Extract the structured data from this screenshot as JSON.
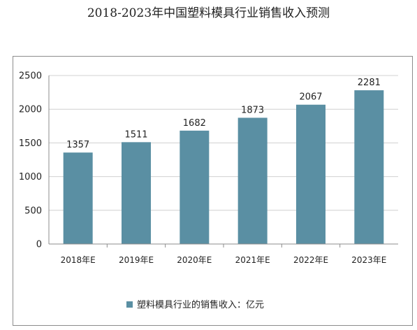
{
  "chart_data": {
    "type": "bar",
    "title": "2018-2023年中国塑料模具行业销售收入预测",
    "categories": [
      "2018年E",
      "2019年E",
      "2020年E",
      "2021年E",
      "2022年E",
      "2023年E"
    ],
    "series": [
      {
        "name": "塑料模具行业的销售收入：亿元",
        "values": [
          1357,
          1511,
          1682,
          1873,
          2067,
          2281
        ],
        "color": "#5a8fa3"
      }
    ],
    "value_labels": [
      "1357",
      "1511",
      "1682",
      "1873",
      "2067",
      "2281"
    ],
    "ylim": [
      0,
      2500
    ],
    "yticks": [
      0,
      500,
      1000,
      1500,
      2000,
      2500
    ],
    "ytick_labels": [
      "0",
      "500",
      "1000",
      "1500",
      "2000",
      "2500"
    ],
    "grid": true,
    "legend_position": "bottom",
    "colors": {
      "bar": "#5a8fa3",
      "grid": "#d0d0d0",
      "axis": "#8c8c8c"
    }
  }
}
